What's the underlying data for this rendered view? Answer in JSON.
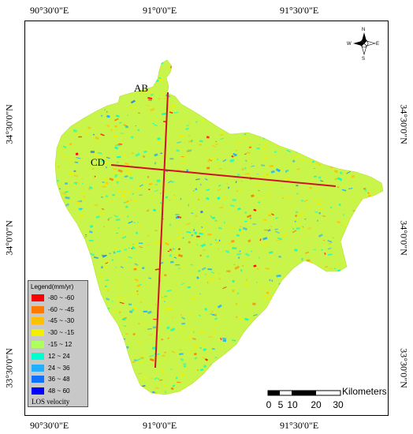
{
  "coordinates": {
    "top": [
      "90°30'0\"E",
      "91°0'0\"E",
      "91°30'0\"E"
    ],
    "bottom": [
      "90°30'0\"E",
      "91°0'0\"E",
      "91°30'0\"E"
    ],
    "left": [
      "34°30'0\"N",
      "34°0'0\"N",
      "33°30'0\"N"
    ],
    "right": [
      "34°30'0\"N",
      "34°0'0\"N",
      "33°30'0\"N"
    ]
  },
  "compass": {
    "north": "N",
    "south": "S",
    "east": "E",
    "west": "W",
    "icon": "compass-rose-icon"
  },
  "profiles": [
    {
      "label": "AB",
      "color": "#d0102a"
    },
    {
      "label": "CD",
      "color": "#d0102a"
    }
  ],
  "legend": {
    "title": "Legend(mm/yr)",
    "footer": "LOS velocity",
    "items": [
      {
        "label": "-80 ~ -60",
        "color": "#ff0000"
      },
      {
        "label": "-60 ~ -45",
        "color": "#ff7a00"
      },
      {
        "label": "-45 ~ -30",
        "color": "#ffc000"
      },
      {
        "label": "-30 ~ -15",
        "color": "#f0f000"
      },
      {
        "label": "-15 ~ 12",
        "color": "#b0ff60"
      },
      {
        "label": "12 ~ 24",
        "color": "#00ffd0"
      },
      {
        "label": "24 ~ 36",
        "color": "#20b0ff"
      },
      {
        "label": "36 ~ 48",
        "color": "#1070ff"
      },
      {
        "label": "48 ~ 60",
        "color": "#0000ff"
      }
    ]
  },
  "scale_bar": {
    "title": "Kilometers",
    "ticks": [
      "0",
      "5",
      "10",
      "20",
      "30"
    ]
  },
  "colors": {
    "base": "#c9f54a",
    "dominant": "#cdf03c"
  }
}
